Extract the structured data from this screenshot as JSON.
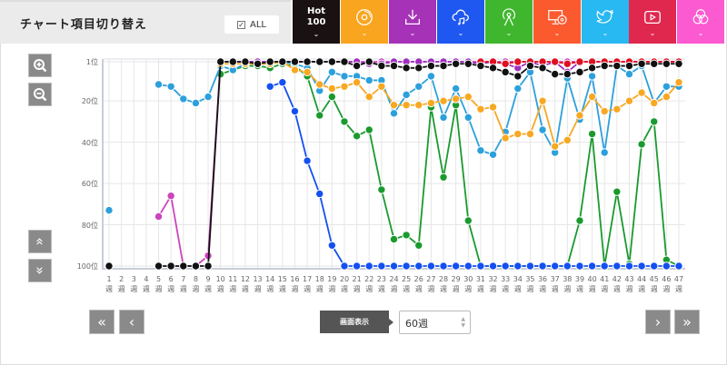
{
  "header": {
    "title": "チャート項目切り替え",
    "all_label": "ALL",
    "all_checked": true
  },
  "tabs": [
    {
      "name": "hot100",
      "label_line1": "Hot",
      "label_line2": "100",
      "color": "#1a1212",
      "icon": "hot100"
    },
    {
      "name": "physical-sales",
      "color": "#f9a51f",
      "icon": "cd-icon"
    },
    {
      "name": "download",
      "color": "#a632b8",
      "icon": "download-icon"
    },
    {
      "name": "streaming",
      "color": "#1f58f0",
      "icon": "cloud-music-icon"
    },
    {
      "name": "radio",
      "color": "#3fb62e",
      "icon": "radio-tower-icon"
    },
    {
      "name": "lookup",
      "color": "#fb5a2f",
      "icon": "pc-disc-icon"
    },
    {
      "name": "twitter",
      "color": "#28b8f2",
      "icon": "twitter-icon"
    },
    {
      "name": "video",
      "color": "#e0284f",
      "icon": "play-icon"
    },
    {
      "name": "karaoke",
      "color": "#fb5ad0",
      "icon": "circles-icon"
    }
  ],
  "chevron": "⌄",
  "chart_data": {
    "type": "line",
    "y_inverted": true,
    "ylim": [
      1,
      100
    ],
    "yticks": [
      "1位",
      "20位",
      "40位",
      "60位",
      "80位",
      "100位"
    ],
    "ytick_values": [
      1,
      20,
      40,
      60,
      80,
      100
    ],
    "x_weeks": [
      1,
      2,
      3,
      4,
      5,
      6,
      7,
      8,
      9,
      10,
      11,
      12,
      13,
      14,
      15,
      16,
      17,
      18,
      19,
      20,
      21,
      22,
      23,
      24,
      25,
      26,
      27,
      28,
      29,
      30,
      31,
      32,
      33,
      34,
      35,
      36,
      37,
      38,
      39,
      40,
      41,
      42,
      43,
      44,
      45,
      46,
      47
    ],
    "x_unit": "週",
    "grid": true,
    "series": [
      {
        "color": "#1a9a2e",
        "values": [
          null,
          null,
          null,
          null,
          null,
          null,
          null,
          null,
          null,
          7,
          5,
          3,
          3,
          4,
          2,
          3,
          8,
          27,
          18,
          30,
          37,
          34,
          63,
          87,
          85,
          90,
          23,
          57,
          22,
          78,
          100,
          100,
          100,
          100,
          100,
          100,
          100,
          100,
          78,
          36,
          100,
          64,
          99,
          41,
          30,
          97,
          100
        ]
      },
      {
        "color": "#cc44bb",
        "values": [
          null,
          null,
          null,
          null,
          76,
          66,
          100,
          100,
          95,
          1,
          1,
          1,
          1,
          1,
          1,
          1,
          1,
          1,
          1,
          1,
          1,
          1,
          1,
          1,
          1,
          1,
          1,
          1,
          1,
          1,
          1,
          1,
          1,
          1,
          1,
          1,
          1,
          1,
          1,
          1,
          1,
          1,
          1,
          1,
          1,
          1,
          1
        ]
      },
      {
        "color": "#a030c0",
        "values": [
          null,
          null,
          null,
          null,
          null,
          null,
          null,
          null,
          null,
          1,
          1,
          1,
          1,
          1,
          1,
          1,
          1,
          1,
          1,
          1,
          1,
          2,
          2,
          1,
          1,
          1,
          1,
          1,
          1,
          1,
          2,
          1,
          2,
          4,
          1,
          3,
          1,
          6,
          1,
          1,
          1,
          1,
          1,
          1,
          1,
          1,
          1
        ]
      },
      {
        "color": "#e01020",
        "values": [
          null,
          null,
          null,
          null,
          null,
          null,
          null,
          null,
          null,
          null,
          null,
          null,
          null,
          null,
          null,
          null,
          null,
          null,
          null,
          null,
          null,
          null,
          null,
          null,
          null,
          null,
          null,
          null,
          null,
          null,
          1,
          1,
          2,
          1,
          1,
          1,
          1,
          2,
          1,
          1,
          1,
          1,
          1,
          1,
          1,
          1,
          1
        ]
      },
      {
        "color": "#2ca0dc",
        "values": [
          73,
          null,
          null,
          null,
          12,
          13,
          19,
          21,
          18,
          3,
          5,
          2,
          2,
          2,
          1,
          2,
          4,
          15,
          6,
          8,
          8,
          10,
          10,
          26,
          17,
          13,
          8,
          28,
          14,
          28,
          44,
          46,
          35,
          14,
          6,
          34,
          45,
          9,
          29,
          8,
          45,
          3,
          7,
          3,
          21,
          13,
          13
        ]
      },
      {
        "color": "#f7a823",
        "values": [
          null,
          null,
          null,
          null,
          null,
          null,
          null,
          null,
          null,
          2,
          2,
          2,
          2,
          2,
          1,
          5,
          6,
          12,
          14,
          13,
          11,
          18,
          13,
          22,
          22,
          22,
          21,
          20,
          19,
          18,
          24,
          23,
          38,
          36,
          36,
          20,
          42,
          39,
          27,
          18,
          25,
          24,
          20,
          16,
          21,
          18,
          11
        ]
      },
      {
        "color": "#1450f0",
        "values": [
          null,
          null,
          null,
          null,
          null,
          null,
          null,
          null,
          null,
          null,
          null,
          null,
          null,
          13,
          11,
          25,
          49,
          65,
          90,
          100,
          100,
          100,
          100,
          100,
          100,
          100,
          100,
          100,
          100,
          100,
          100,
          100,
          100,
          100,
          100,
          100,
          100,
          100,
          100,
          100,
          100,
          100,
          100,
          100,
          100,
          100,
          100
        ]
      },
      {
        "color": "#111111",
        "values": [
          100,
          null,
          null,
          null,
          100,
          100,
          100,
          100,
          100,
          1,
          1,
          1,
          2,
          1,
          1,
          1,
          1,
          1,
          1,
          1,
          3,
          1,
          3,
          3,
          4,
          4,
          3,
          3,
          2,
          2,
          3,
          4,
          6,
          8,
          3,
          4,
          7,
          7,
          6,
          4,
          3,
          3,
          3,
          2,
          2,
          2,
          2
        ]
      }
    ]
  },
  "side": {
    "zoom_in": "zoom-in",
    "zoom_out": "zoom-out",
    "up": "«",
    "down": "»"
  },
  "footer": {
    "first": "«",
    "prev": "‹",
    "next": "›",
    "last": "»",
    "display_label": "画面表示",
    "range_value": "60週"
  }
}
